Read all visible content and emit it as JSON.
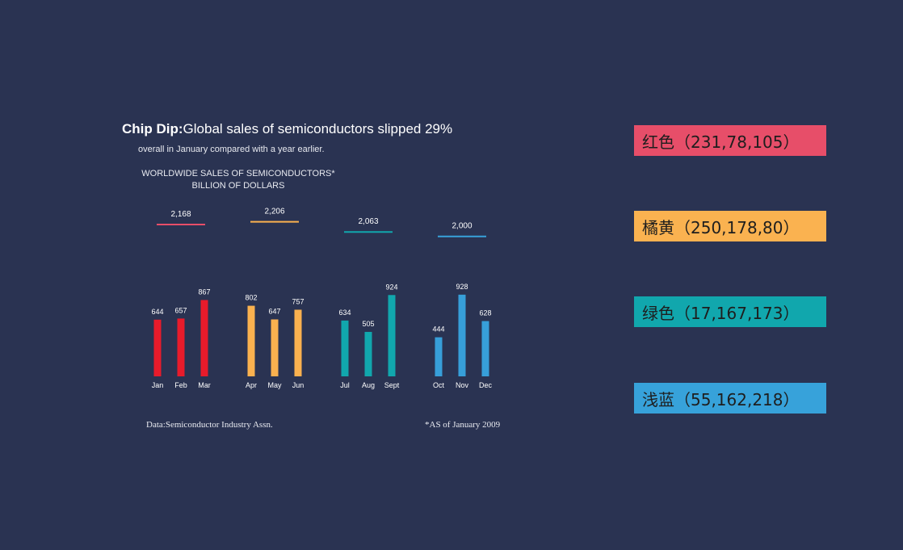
{
  "title": {
    "bold": "Chip Dip:",
    "rest": "Global sales of semiconductors slipped 29%"
  },
  "subtitle": "overall in January compared with a year earlier.",
  "chart_header": {
    "line1": "WORLDWIDE SALES OF SEMICONDUCTORS*",
    "line2": "BILLION OF DOLLARS"
  },
  "chart_data": {
    "type": "bar",
    "title": "WORLDWIDE SALES OF SEMICONDUCTORS*",
    "ylabel": "BILLION OF DOLLARS",
    "grid": false,
    "categories": [
      "Jan",
      "Feb",
      "Mar",
      "Apr",
      "May",
      "Jun",
      "Jul",
      "Aug",
      "Sept",
      "Oct",
      "Nov",
      "Dec"
    ],
    "values": [
      644,
      657,
      867,
      802,
      647,
      757,
      634,
      505,
      924,
      444,
      928,
      628
    ],
    "bar_colors": [
      "#e81b2b",
      "#e81b2b",
      "#e81b2b",
      "#fab14f",
      "#fab14f",
      "#fab14f",
      "#11a7ad",
      "#11a7ad",
      "#11a7ad",
      "#379fd9",
      "#379fd9",
      "#379fd9"
    ],
    "quarter_totals": [
      {
        "label": "2,168",
        "value": 2168,
        "color": "#e84e69"
      },
      {
        "label": "2,206",
        "value": 2206,
        "color": "#fab24f"
      },
      {
        "label": "2,063",
        "value": 2063,
        "color": "#11a7ad"
      },
      {
        "label": "2,000",
        "value": 2000,
        "color": "#37a2da"
      }
    ]
  },
  "footer": {
    "source": "Data:Semiconductor Industry Assn.",
    "note": "*AS of January 2009"
  },
  "swatches": [
    {
      "label": "红色（231,78,105）",
      "color": "#e74e69"
    },
    {
      "label": "橘黄（250,178,80）",
      "color": "#fab250"
    },
    {
      "label": "绿色（17,167,173）",
      "color": "#11a7ad"
    },
    {
      "label": "浅蓝（55,162,218）",
      "color": "#37a2da"
    }
  ]
}
